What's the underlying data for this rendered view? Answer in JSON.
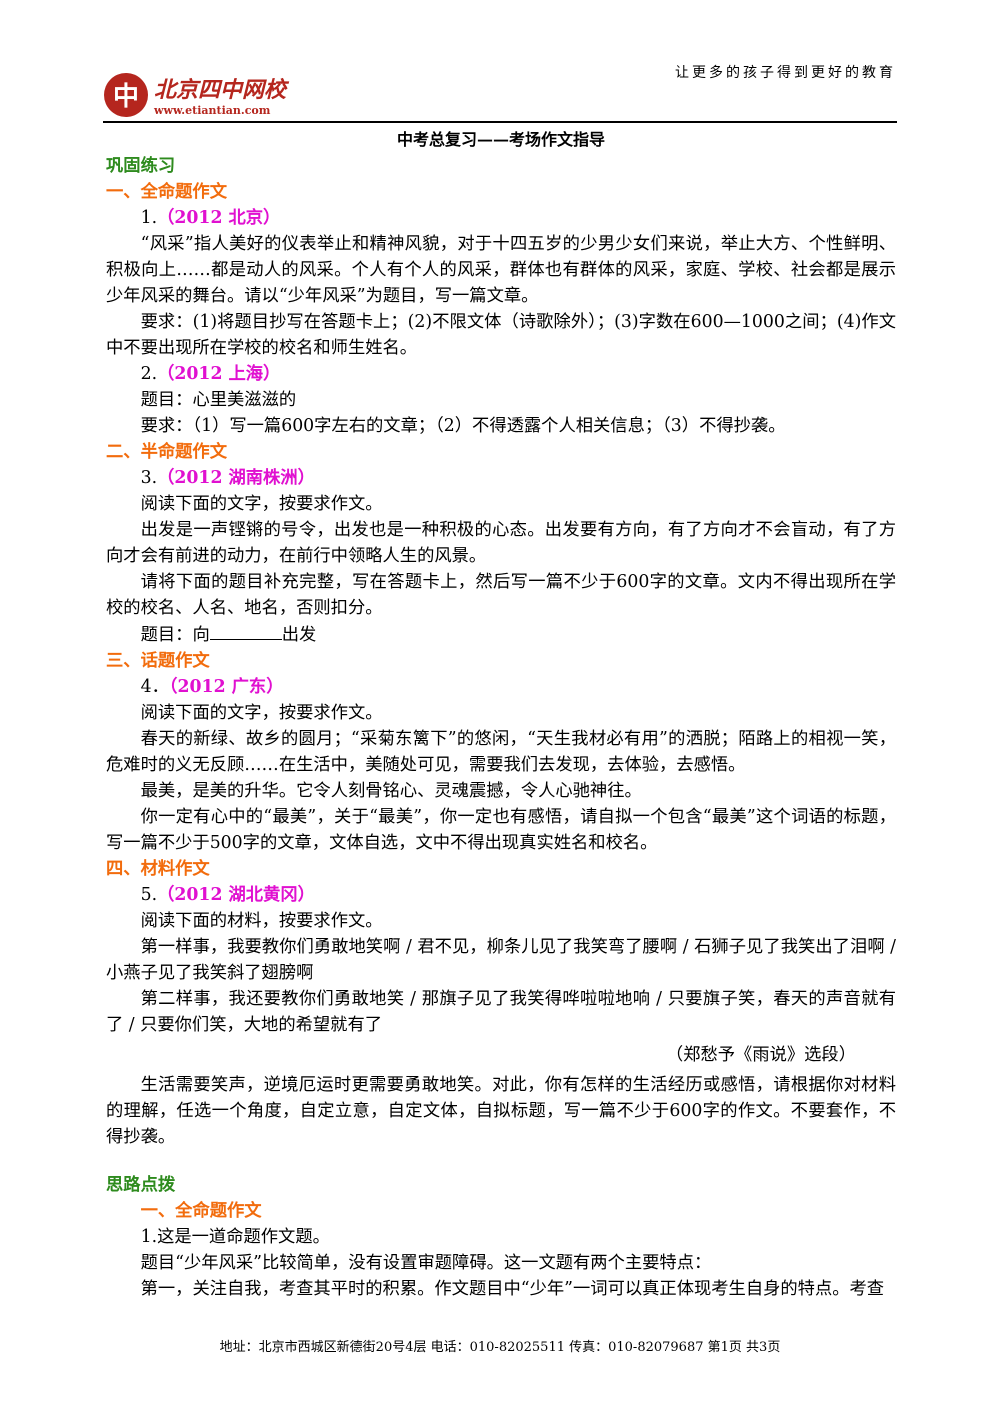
{
  "header": {
    "logo": "北京四中网校",
    "url": "www.etiantian.com",
    "slogan": "让更多的孩子得到更好的教育"
  },
  "title": "中考总复习——考场作文指导",
  "practice": {
    "heading": "巩固练习",
    "sections": [
      {
        "heading": "一、全命题作文",
        "items": [
          {
            "label": "1.",
            "source": "（2012 北京）",
            "paragraphs": [
              "“风采”指人美好的仪表举止和精神风貌，对于十四五岁的少男少女们来说，举止大方、个性鲜明、积极向上……都是动人的风采。个人有个人的风采，群体也有群体的风采，家庭、学校、社会都是展示少年风采的舞台。请以“少年风采”为题目，写一篇文章。",
              "要求：(1)将题目抄写在答题卡上；(2)不限文体（诗歌除外）；(3)字数在600—1000之间；(4)作文中不要出现所在学校的校名和师生姓名。"
            ]
          },
          {
            "label": "2.",
            "source": "（2012 上海）",
            "paragraphs": [
              "题目：心里美滋滋的",
              "要求：（1）写一篇600字左右的文章；（2）不得透露个人相关信息；（3）不得抄袭。"
            ]
          }
        ]
      },
      {
        "heading": "二、半命题作文",
        "items": [
          {
            "label": "3.",
            "source": "（2012 湖南株洲）",
            "paragraphs": [
              "阅读下面的文字，按要求作文。",
              "出发是一声铿锵的号令，出发也是一种积极的心态。出发要有方向，有了方向才不会盲动，有了方向才会有前进的动力，在前行中领略人生的风景。",
              "请将下面的题目补充完整，写在答题卡上，然后写一篇不少于600字的文章。文内不得出现所在学校的校名、人名、地名，否则扣分。"
            ],
            "blank_before": "题目：向",
            "blank_after": "出发"
          }
        ]
      },
      {
        "heading": "三、话题作文",
        "items": [
          {
            "label": "4．",
            "source": "（2012 广东）",
            "paragraphs": [
              "阅读下面的文字，按要求作文。",
              "春天的新绿、故乡的圆月；“采菊东篱下”的悠闲，“天生我材必有用”的洒脱；陌路上的相视一笑，危难时的义无反顾……在生活中，美随处可见，需要我们去发现，去体验，去感悟。",
              "最美，是美的升华。它令人刻骨铭心、灵魂震撼，令人心驰神往。",
              "你一定有心中的“最美”，关于“最美”，你一定也有感悟，请自拟一个包含“最美”这个词语的标题，写一篇不少于500字的文章，文体自选，文中不得出现真实姓名和校名。"
            ]
          }
        ]
      },
      {
        "heading": "四、材料作文",
        "items": [
          {
            "label": "5.",
            "source": "（2012 湖北黄冈）",
            "paragraphs": [
              "阅读下面的材料，按要求作文。",
              "第一样事，我要教你们勇敢地笑啊 / 君不见，柳条儿见了我笑弯了腰啊 / 石狮子见了我笑出了泪啊 / 小燕子见了我笑斜了翅膀啊",
              "第二样事，我还要教你们勇敢地笑 / 那旗子见了我笑得哗啦啦地响 / 只要旗子笑，春天的声音就有了 / 只要你们笑，大地的希望就有了"
            ],
            "citation": "（郑愁予《雨说》选段）",
            "closing": "生活需要笑声，逆境厄运时更需要勇敢地笑。对此，你有怎样的生活经历或感悟，请根据你对材料的理解，任选一个角度，自定立意，自定文体，自拟标题，写一篇不少于600字的作文。不要套作，不得抄袭。"
          }
        ]
      }
    ]
  },
  "guidance": {
    "heading": "思路点拨",
    "section": "一、全命题作文",
    "paragraphs": [
      "1.这是一道命题作文题。",
      "题目“少年风采”比较简单，没有设置审题障碍。这一文题有两个主要特点：",
      "第一，关注自我，考查其平时的积累。作文题目中“少年”一词可以真正体现考生自身的特点。考查"
    ]
  },
  "footer": {
    "address": "地址：北京市西城区新德街20号4层 电话：010-82025511 传真：010-82079687",
    "page": "第1页 共3页"
  }
}
